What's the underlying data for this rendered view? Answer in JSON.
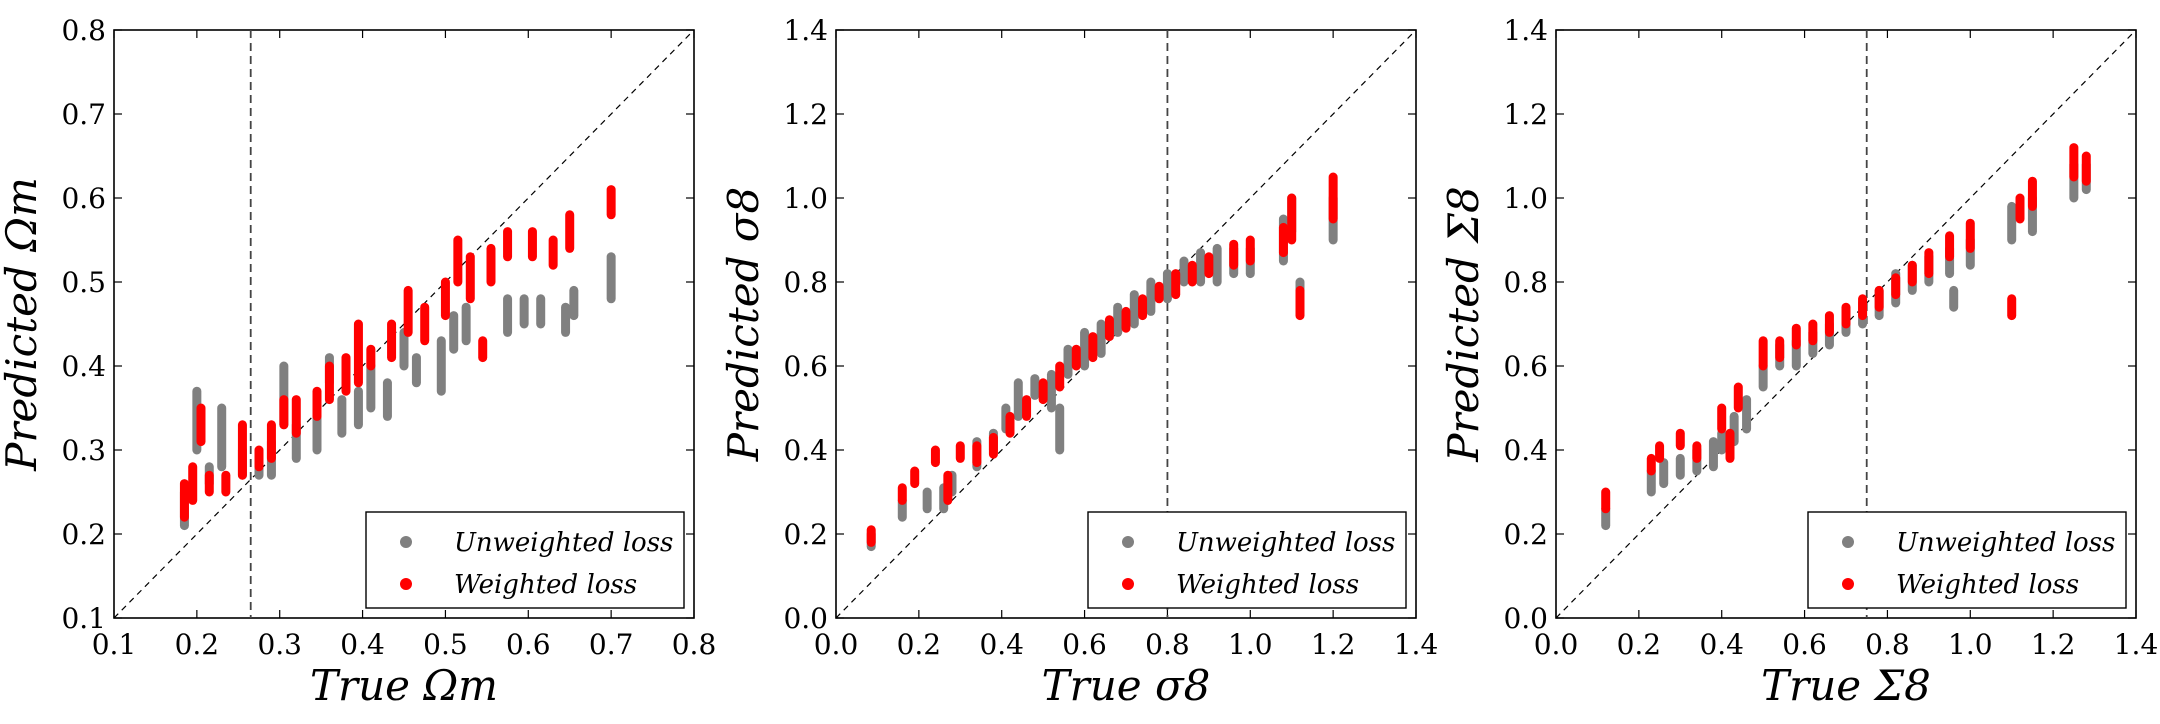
{
  "chart_data": [
    {
      "type": "scatter",
      "title": "",
      "xlabel": "True Ωm",
      "ylabel": "Predicted Ωm",
      "xlim": [
        0.1,
        0.8
      ],
      "ylim": [
        0.1,
        0.8
      ],
      "xticks": [
        "0.1",
        "0.2",
        "0.3",
        "0.4",
        "0.5",
        "0.6",
        "0.7",
        "0.8"
      ],
      "yticks": [
        "0.1",
        "0.2",
        "0.3",
        "0.4",
        "0.5",
        "0.6",
        "0.7",
        "0.8"
      ],
      "fiducial": 0.265,
      "legend_position": "bottom-right",
      "series": [
        {
          "name": "Unweighted loss",
          "color": "#808080",
          "points": [
            [
              0.185,
              0.21,
              0.25
            ],
            [
              0.2,
              0.3,
              0.37
            ],
            [
              0.215,
              0.26,
              0.28
            ],
            [
              0.23,
              0.28,
              0.35
            ],
            [
              0.255,
              0.27,
              0.3
            ],
            [
              0.275,
              0.27,
              0.29
            ],
            [
              0.29,
              0.27,
              0.31
            ],
            [
              0.305,
              0.33,
              0.4
            ],
            [
              0.32,
              0.29,
              0.33
            ],
            [
              0.345,
              0.3,
              0.35
            ],
            [
              0.36,
              0.38,
              0.41
            ],
            [
              0.375,
              0.32,
              0.36
            ],
            [
              0.395,
              0.33,
              0.37
            ],
            [
              0.41,
              0.35,
              0.4
            ],
            [
              0.43,
              0.34,
              0.38
            ],
            [
              0.45,
              0.4,
              0.44
            ],
            [
              0.465,
              0.38,
              0.41
            ],
            [
              0.495,
              0.37,
              0.43
            ],
            [
              0.51,
              0.42,
              0.46
            ],
            [
              0.525,
              0.43,
              0.47
            ],
            [
              0.575,
              0.44,
              0.48
            ],
            [
              0.595,
              0.45,
              0.48
            ],
            [
              0.615,
              0.45,
              0.48
            ],
            [
              0.645,
              0.44,
              0.47
            ],
            [
              0.655,
              0.46,
              0.49
            ],
            [
              0.7,
              0.48,
              0.53
            ]
          ]
        },
        {
          "name": "Weighted loss",
          "color": "#ff0000",
          "points": [
            [
              0.185,
              0.22,
              0.26
            ],
            [
              0.195,
              0.24,
              0.28
            ],
            [
              0.205,
              0.31,
              0.35
            ],
            [
              0.215,
              0.25,
              0.27
            ],
            [
              0.235,
              0.25,
              0.27
            ],
            [
              0.255,
              0.27,
              0.33
            ],
            [
              0.275,
              0.28,
              0.3
            ],
            [
              0.29,
              0.29,
              0.33
            ],
            [
              0.305,
              0.33,
              0.36
            ],
            [
              0.32,
              0.32,
              0.36
            ],
            [
              0.345,
              0.34,
              0.37
            ],
            [
              0.36,
              0.36,
              0.4
            ],
            [
              0.38,
              0.37,
              0.41
            ],
            [
              0.395,
              0.38,
              0.45
            ],
            [
              0.41,
              0.4,
              0.42
            ],
            [
              0.435,
              0.41,
              0.45
            ],
            [
              0.455,
              0.44,
              0.49
            ],
            [
              0.475,
              0.43,
              0.47
            ],
            [
              0.5,
              0.46,
              0.5
            ],
            [
              0.515,
              0.5,
              0.55
            ],
            [
              0.53,
              0.48,
              0.53
            ],
            [
              0.545,
              0.41,
              0.43
            ],
            [
              0.555,
              0.5,
              0.54
            ],
            [
              0.575,
              0.53,
              0.56
            ],
            [
              0.605,
              0.53,
              0.56
            ],
            [
              0.63,
              0.52,
              0.55
            ],
            [
              0.65,
              0.54,
              0.58
            ],
            [
              0.7,
              0.58,
              0.61
            ]
          ]
        }
      ]
    },
    {
      "type": "scatter",
      "title": "",
      "xlabel": "True σ8",
      "ylabel": "Predicted σ8",
      "xlim": [
        0.0,
        1.4
      ],
      "ylim": [
        0.0,
        1.4
      ],
      "xticks": [
        "0.0",
        "0.2",
        "0.4",
        "0.6",
        "0.8",
        "1.0",
        "1.2",
        "1.4"
      ],
      "yticks": [
        "0.0",
        "0.2",
        "0.4",
        "0.6",
        "0.8",
        "1.0",
        "1.2",
        "1.4"
      ],
      "fiducial": 0.8,
      "legend_position": "bottom-right",
      "series": [
        {
          "name": "Unweighted loss",
          "color": "#808080",
          "points": [
            [
              0.085,
              0.17,
              0.2
            ],
            [
              0.16,
              0.24,
              0.28
            ],
            [
              0.22,
              0.26,
              0.3
            ],
            [
              0.26,
              0.26,
              0.31
            ],
            [
              0.28,
              0.3,
              0.34
            ],
            [
              0.34,
              0.36,
              0.42
            ],
            [
              0.38,
              0.4,
              0.44
            ],
            [
              0.41,
              0.45,
              0.5
            ],
            [
              0.44,
              0.48,
              0.56
            ],
            [
              0.48,
              0.53,
              0.57
            ],
            [
              0.52,
              0.5,
              0.58
            ],
            [
              0.54,
              0.4,
              0.5
            ],
            [
              0.56,
              0.58,
              0.64
            ],
            [
              0.6,
              0.6,
              0.68
            ],
            [
              0.64,
              0.63,
              0.7
            ],
            [
              0.68,
              0.68,
              0.74
            ],
            [
              0.72,
              0.7,
              0.77
            ],
            [
              0.76,
              0.73,
              0.8
            ],
            [
              0.8,
              0.76,
              0.82
            ],
            [
              0.84,
              0.8,
              0.85
            ],
            [
              0.88,
              0.8,
              0.87
            ],
            [
              0.92,
              0.8,
              0.88
            ],
            [
              0.96,
              0.82,
              0.88
            ],
            [
              1.0,
              0.82,
              0.88
            ],
            [
              1.08,
              0.85,
              0.95
            ],
            [
              1.1,
              0.92,
              1.0
            ],
            [
              1.12,
              0.73,
              0.8
            ],
            [
              1.2,
              0.9,
              1.0
            ]
          ]
        },
        {
          "name": "Weighted loss",
          "color": "#ff0000",
          "points": [
            [
              0.085,
              0.18,
              0.21
            ],
            [
              0.16,
              0.28,
              0.31
            ],
            [
              0.19,
              0.32,
              0.35
            ],
            [
              0.24,
              0.37,
              0.4
            ],
            [
              0.27,
              0.28,
              0.34
            ],
            [
              0.3,
              0.38,
              0.41
            ],
            [
              0.34,
              0.37,
              0.41
            ],
            [
              0.38,
              0.39,
              0.43
            ],
            [
              0.42,
              0.44,
              0.48
            ],
            [
              0.46,
              0.48,
              0.52
            ],
            [
              0.5,
              0.52,
              0.56
            ],
            [
              0.54,
              0.55,
              0.6
            ],
            [
              0.58,
              0.6,
              0.64
            ],
            [
              0.62,
              0.62,
              0.67
            ],
            [
              0.66,
              0.67,
              0.71
            ],
            [
              0.7,
              0.69,
              0.73
            ],
            [
              0.74,
              0.72,
              0.76
            ],
            [
              0.78,
              0.76,
              0.79
            ],
            [
              0.82,
              0.77,
              0.82
            ],
            [
              0.86,
              0.8,
              0.84
            ],
            [
              0.9,
              0.82,
              0.86
            ],
            [
              0.96,
              0.84,
              0.89
            ],
            [
              1.0,
              0.85,
              0.9
            ],
            [
              1.08,
              0.87,
              0.93
            ],
            [
              1.1,
              0.9,
              1.0
            ],
            [
              1.12,
              0.72,
              0.78
            ],
            [
              1.2,
              0.95,
              1.05
            ]
          ]
        }
      ]
    },
    {
      "type": "scatter",
      "title": "",
      "xlabel": "True Σ8",
      "ylabel": "Predicted Σ8",
      "xlim": [
        0.0,
        1.4
      ],
      "ylim": [
        0.0,
        1.4
      ],
      "xticks": [
        "0.0",
        "0.2",
        "0.4",
        "0.6",
        "0.8",
        "1.0",
        "1.2",
        "1.4"
      ],
      "yticks": [
        "0.0",
        "0.2",
        "0.4",
        "0.6",
        "0.8",
        "1.0",
        "1.2",
        "1.4"
      ],
      "fiducial": 0.75,
      "legend_position": "bottom-right",
      "series": [
        {
          "name": "Unweighted loss",
          "color": "#808080",
          "points": [
            [
              0.12,
              0.22,
              0.26
            ],
            [
              0.23,
              0.3,
              0.35
            ],
            [
              0.26,
              0.32,
              0.37
            ],
            [
              0.3,
              0.34,
              0.38
            ],
            [
              0.34,
              0.35,
              0.4
            ],
            [
              0.38,
              0.36,
              0.42
            ],
            [
              0.4,
              0.4,
              0.44
            ],
            [
              0.43,
              0.42,
              0.48
            ],
            [
              0.46,
              0.45,
              0.52
            ],
            [
              0.5,
              0.55,
              0.6
            ],
            [
              0.54,
              0.6,
              0.65
            ],
            [
              0.58,
              0.6,
              0.66
            ],
            [
              0.62,
              0.63,
              0.68
            ],
            [
              0.66,
              0.65,
              0.7
            ],
            [
              0.7,
              0.68,
              0.73
            ],
            [
              0.74,
              0.7,
              0.75
            ],
            [
              0.78,
              0.72,
              0.78
            ],
            [
              0.82,
              0.75,
              0.82
            ],
            [
              0.86,
              0.78,
              0.84
            ],
            [
              0.9,
              0.8,
              0.86
            ],
            [
              0.95,
              0.82,
              0.88
            ],
            [
              0.96,
              0.74,
              0.78
            ],
            [
              1.0,
              0.84,
              0.9
            ],
            [
              1.1,
              0.9,
              0.98
            ],
            [
              1.15,
              0.92,
              1.0
            ],
            [
              1.25,
              1.0,
              1.08
            ],
            [
              1.28,
              1.02,
              1.08
            ]
          ]
        },
        {
          "name": "Weighted loss",
          "color": "#ff0000",
          "points": [
            [
              0.12,
              0.26,
              0.3
            ],
            [
              0.23,
              0.35,
              0.38
            ],
            [
              0.25,
              0.38,
              0.41
            ],
            [
              0.3,
              0.41,
              0.44
            ],
            [
              0.34,
              0.38,
              0.41
            ],
            [
              0.4,
              0.45,
              0.5
            ],
            [
              0.42,
              0.38,
              0.44
            ],
            [
              0.44,
              0.5,
              0.55
            ],
            [
              0.5,
              0.6,
              0.66
            ],
            [
              0.54,
              0.62,
              0.66
            ],
            [
              0.58,
              0.65,
              0.69
            ],
            [
              0.62,
              0.66,
              0.7
            ],
            [
              0.66,
              0.68,
              0.72
            ],
            [
              0.7,
              0.7,
              0.74
            ],
            [
              0.74,
              0.72,
              0.76
            ],
            [
              0.78,
              0.74,
              0.78
            ],
            [
              0.82,
              0.77,
              0.81
            ],
            [
              0.86,
              0.8,
              0.84
            ],
            [
              0.9,
              0.82,
              0.87
            ],
            [
              0.95,
              0.86,
              0.91
            ],
            [
              1.0,
              0.88,
              0.94
            ],
            [
              1.1,
              0.72,
              0.76
            ],
            [
              1.12,
              0.95,
              1.0
            ],
            [
              1.15,
              0.98,
              1.04
            ],
            [
              1.25,
              1.05,
              1.12
            ],
            [
              1.28,
              1.04,
              1.1
            ]
          ]
        }
      ]
    }
  ]
}
